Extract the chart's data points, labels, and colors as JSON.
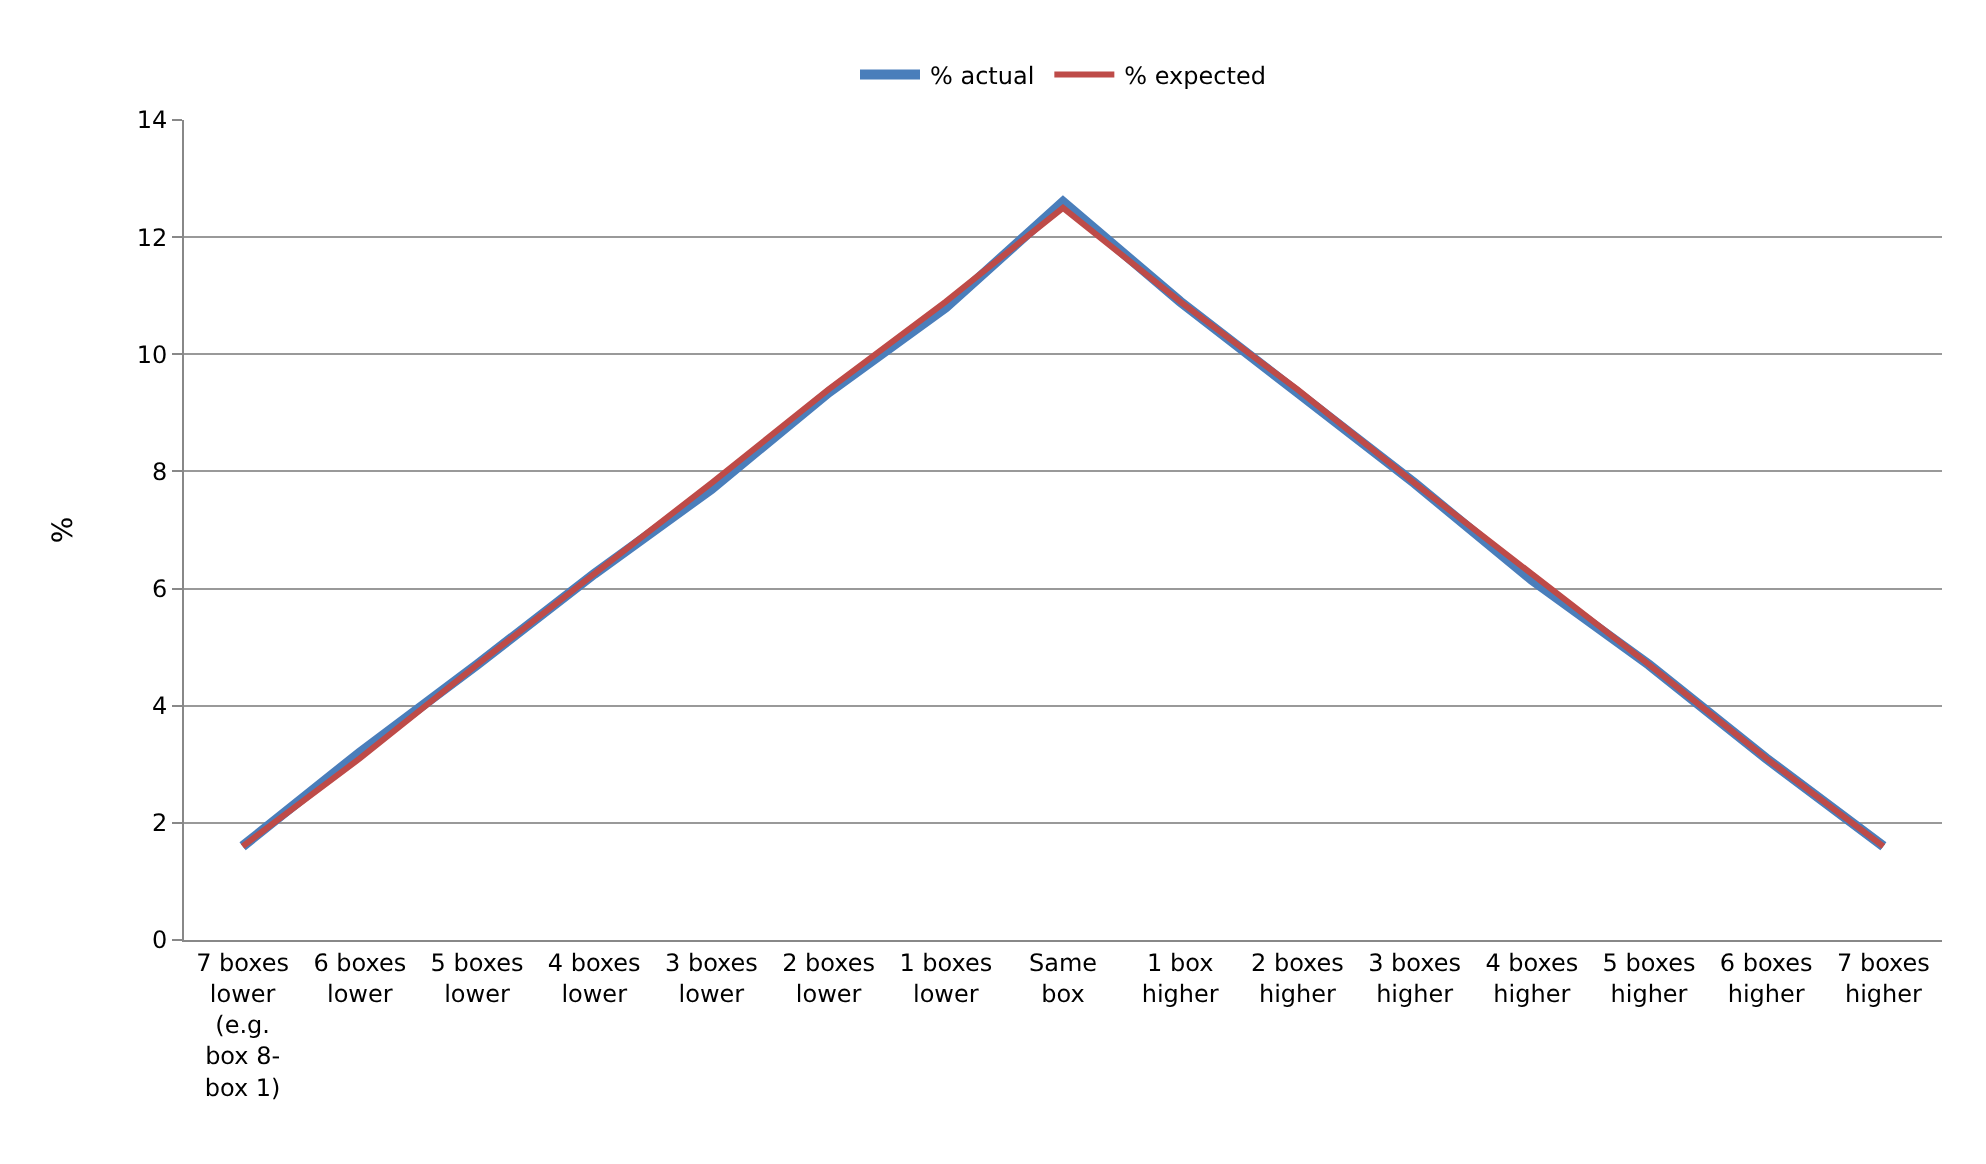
{
  "chart_data": {
    "type": "line",
    "ylabel": "%",
    "categories": [
      "7 boxes lower (e.g. box 8-box 1)",
      "6 boxes lower",
      "5 boxes lower",
      "4 boxes lower",
      "3 boxes lower",
      "2 boxes lower",
      "1 boxes lower",
      "Same box",
      "1 box higher",
      "2 boxes higher",
      "3 boxes higher",
      "4 boxes higher",
      "5 boxes higher",
      "6 boxes higher",
      "7 boxes higher"
    ],
    "series": [
      {
        "name": "% actual",
        "color": "#4a7ebb",
        "values": [
          1.6,
          3.2,
          4.7,
          6.25,
          7.7,
          9.35,
          10.8,
          12.6,
          10.9,
          9.35,
          7.8,
          6.15,
          4.7,
          3.1,
          1.6
        ]
      },
      {
        "name": "% expected",
        "color": "#be4b48",
        "values": [
          1.6,
          3.1,
          4.7,
          6.25,
          7.8,
          9.4,
          10.9,
          12.5,
          10.9,
          9.4,
          7.8,
          6.25,
          4.7,
          3.1,
          1.6
        ]
      }
    ],
    "ylim": [
      0,
      14
    ],
    "yticks": [
      0,
      2,
      4,
      6,
      8,
      10,
      12,
      14
    ],
    "grid": "y",
    "legend": "top",
    "marker": "none",
    "line_style": "solid"
  }
}
